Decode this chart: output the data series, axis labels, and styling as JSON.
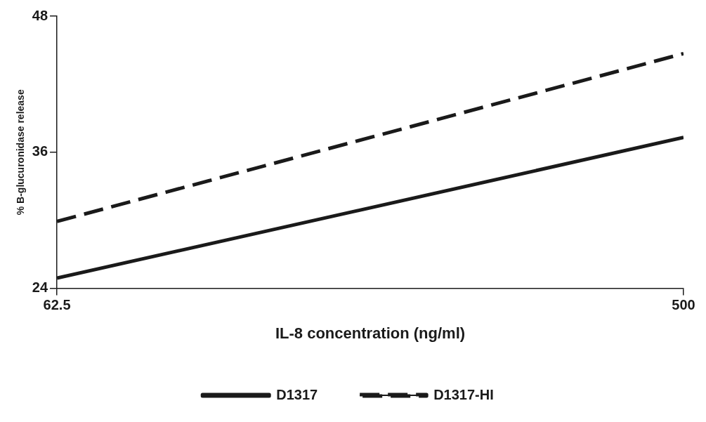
{
  "chart_data": {
    "type": "line",
    "xlabel": "IL-8 concentration (ng/ml)",
    "ylabel": "% B-glucuronidase release",
    "x": [
      62.5,
      500
    ],
    "series": [
      {
        "name": "D1317",
        "color": "#1a1a1a",
        "values": [
          24.9,
          37.3
        ],
        "line_style": "solid"
      },
      {
        "name": "D1317-HI",
        "color": "#1a1a1a",
        "values": [
          29.9,
          44.7
        ],
        "line_style": "dashed"
      }
    ],
    "xlim": [
      62.5,
      500
    ],
    "xticks": [
      62.5,
      500
    ],
    "ylim": [
      24,
      48
    ],
    "yticks": [
      24,
      36,
      48
    ],
    "grid": false,
    "legend": "bottom",
    "marker": "none"
  }
}
